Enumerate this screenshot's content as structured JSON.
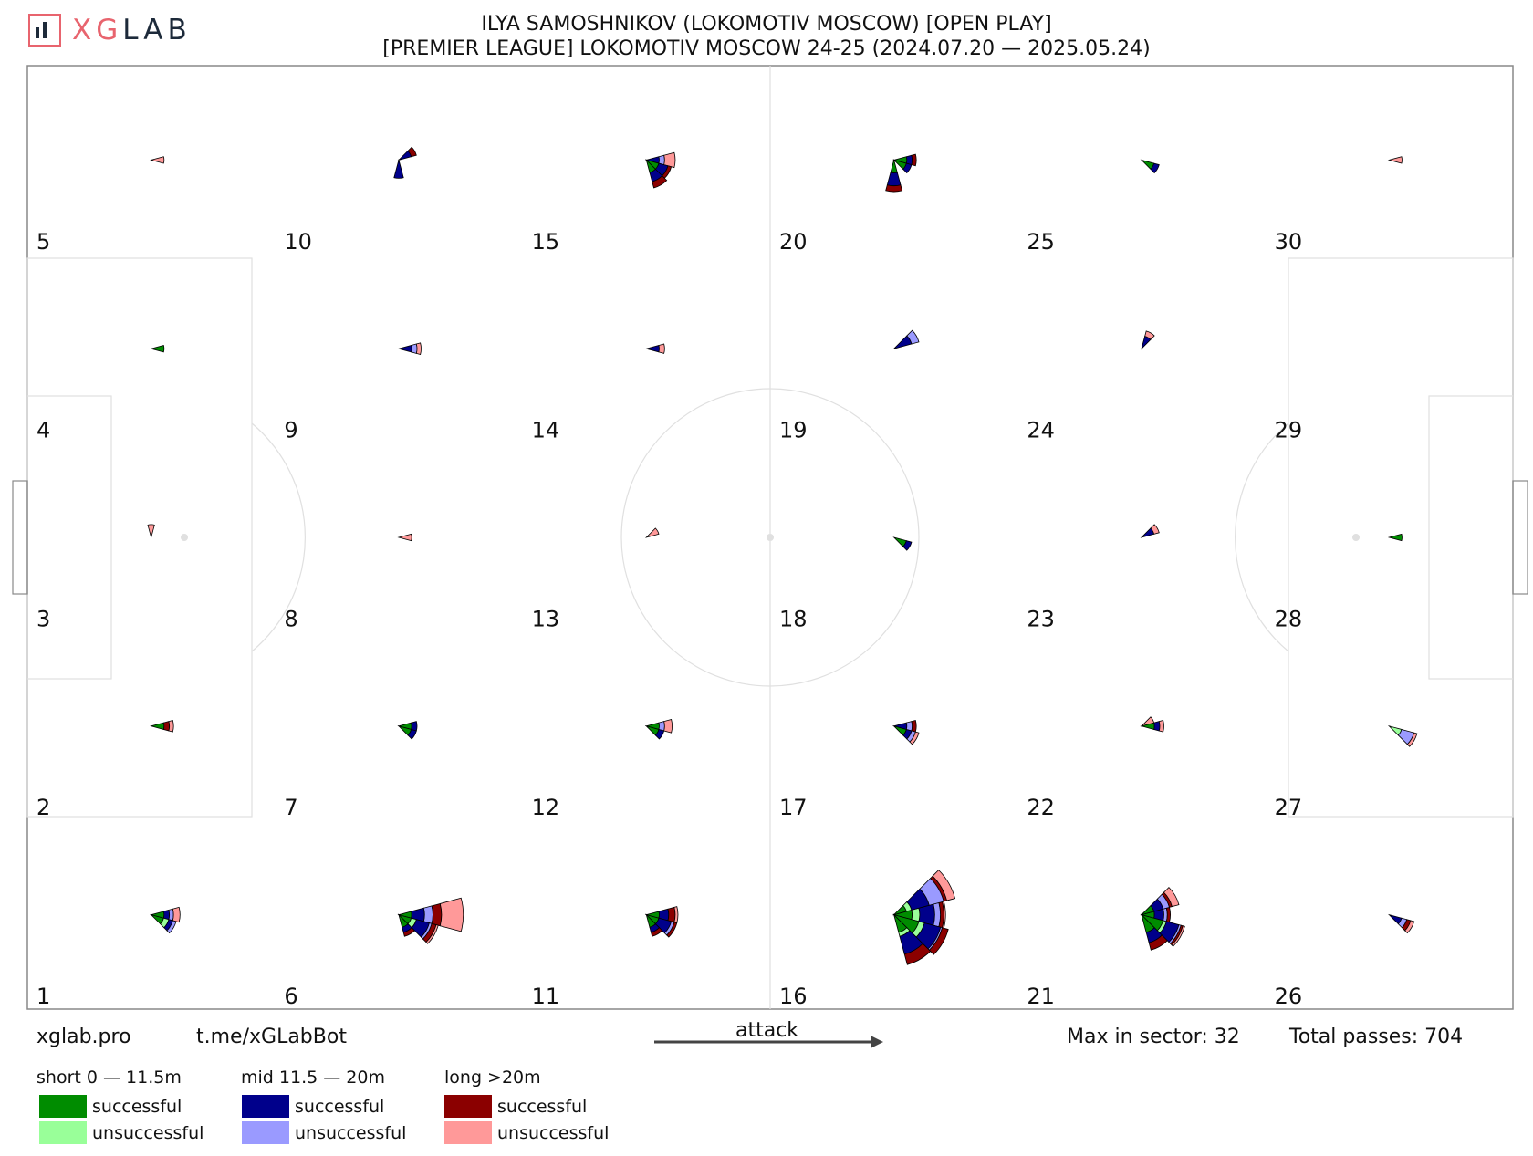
{
  "header": {
    "logo_text": "XGLAB",
    "title_line1": "ILYA SAMOSHNIKOV (LOKOMOTIV MOSCOW) [OPEN PLAY]",
    "title_line2": "[PREMIER LEAGUE] LOKOMOTIV MOSCOW 24-25 (2024.07.20 — 2025.05.24)"
  },
  "footer": {
    "site": "xglab.pro",
    "bot": "t.me/xGLabBot",
    "attack_label": "attack",
    "max_sector": "Max in sector: 32",
    "total_passes": "Total passes: 704"
  },
  "legend": {
    "groups": [
      {
        "title": "short 0 — 11.5m",
        "successful": "successful",
        "unsuccessful": "unsuccessful",
        "color_success": "#008c00",
        "color_fail": "#99ff99"
      },
      {
        "title": "mid 11.5 — 20m",
        "successful": "successful",
        "unsuccessful": "unsuccessful",
        "color_success": "#00008b",
        "color_fail": "#9a9aff"
      },
      {
        "title": "long >20m",
        "successful": "successful",
        "unsuccessful": "unsuccessful",
        "color_success": "#8b0000",
        "color_fail": "#ff9999"
      }
    ]
  },
  "chart_data": {
    "type": "radial sector map",
    "max_in_sector": 32,
    "total_passes": 704,
    "attack_direction": "left-to-right",
    "zones": [
      {
        "id": 1,
        "label": "1"
      },
      {
        "id": 2,
        "label": "2"
      },
      {
        "id": 3,
        "label": "3"
      },
      {
        "id": 4,
        "label": "4"
      },
      {
        "id": 5,
        "label": "5"
      },
      {
        "id": 6,
        "label": "6"
      },
      {
        "id": 7,
        "label": "7"
      },
      {
        "id": 8,
        "label": "8"
      },
      {
        "id": 9,
        "label": "9"
      },
      {
        "id": 10,
        "label": "10"
      },
      {
        "id": 11,
        "label": "11"
      },
      {
        "id": 12,
        "label": "12"
      },
      {
        "id": 13,
        "label": "13"
      },
      {
        "id": 14,
        "label": "14"
      },
      {
        "id": 15,
        "label": "15"
      },
      {
        "id": 16,
        "label": "16"
      },
      {
        "id": 17,
        "label": "17"
      },
      {
        "id": 18,
        "label": "18"
      },
      {
        "id": 19,
        "label": "19"
      },
      {
        "id": 20,
        "label": "20"
      },
      {
        "id": 21,
        "label": "21"
      },
      {
        "id": 22,
        "label": "22"
      },
      {
        "id": 23,
        "label": "23"
      },
      {
        "id": 24,
        "label": "24"
      },
      {
        "id": 25,
        "label": "25"
      },
      {
        "id": 26,
        "label": "26"
      },
      {
        "id": 27,
        "label": "27"
      },
      {
        "id": 28,
        "label": "28"
      },
      {
        "id": 29,
        "label": "29"
      },
      {
        "id": 30,
        "label": "30"
      }
    ],
    "sectors": [
      {
        "zone": 1,
        "dir": 0,
        "ss": 1,
        "su": 0,
        "ms": 1,
        "mu": 1,
        "ls": 0,
        "lu": 2
      },
      {
        "zone": 1,
        "dir": 11,
        "ss": 1,
        "su": 1,
        "ms": 1,
        "mu": 1,
        "ls": 0,
        "lu": 0
      },
      {
        "zone": 2,
        "dir": 0,
        "ss": 1,
        "su": 0,
        "ms": 0,
        "mu": 0,
        "ls": 1,
        "lu": 1
      },
      {
        "zone": 3,
        "dir": 3,
        "ss": 0,
        "su": 0,
        "ms": 0,
        "mu": 0,
        "ls": 0,
        "lu": 1
      },
      {
        "zone": 4,
        "dir": 0,
        "ss": 1,
        "su": 0,
        "ms": 0,
        "mu": 0,
        "ls": 0,
        "lu": 0
      },
      {
        "zone": 5,
        "dir": 0,
        "ss": 0,
        "su": 0,
        "ms": 0,
        "mu": 0,
        "ls": 0,
        "lu": 1
      },
      {
        "zone": 6,
        "dir": 0,
        "ss": 1,
        "su": 0,
        "ms": 3,
        "mu": 3,
        "ls": 4,
        "lu": 14
      },
      {
        "zone": 6,
        "dir": 11,
        "ss": 1,
        "su": 1,
        "ms": 4,
        "mu": 1,
        "ls": 2,
        "lu": 1
      },
      {
        "zone": 6,
        "dir": 10,
        "ss": 1,
        "su": 0,
        "ms": 1,
        "mu": 0,
        "ls": 1,
        "lu": 0
      },
      {
        "zone": 7,
        "dir": 0,
        "ss": 1,
        "su": 0,
        "ms": 1,
        "mu": 0,
        "ls": 0,
        "lu": 0
      },
      {
        "zone": 7,
        "dir": 11,
        "ss": 1,
        "su": 0,
        "ms": 1,
        "mu": 0,
        "ls": 0,
        "lu": 0
      },
      {
        "zone": 8,
        "dir": 0,
        "ss": 0,
        "su": 0,
        "ms": 0,
        "mu": 0,
        "ls": 0,
        "lu": 1
      },
      {
        "zone": 9,
        "dir": 0,
        "ss": 0,
        "su": 0,
        "ms": 1,
        "mu": 1,
        "ls": 0,
        "lu": 1
      },
      {
        "zone": 10,
        "dir": 1,
        "ss": 0,
        "su": 0,
        "ms": 1,
        "mu": 0,
        "ls": 1,
        "lu": 0
      },
      {
        "zone": 10,
        "dir": 9,
        "ss": 0,
        "su": 0,
        "ms": 2,
        "mu": 0,
        "ls": 0,
        "lu": 0
      },
      {
        "zone": 11,
        "dir": 0,
        "ss": 1,
        "su": 0,
        "ms": 2,
        "mu": 0,
        "ls": 2,
        "lu": 1
      },
      {
        "zone": 11,
        "dir": 11,
        "ss": 1,
        "su": 0,
        "ms": 3,
        "mu": 1,
        "ls": 1,
        "lu": 0
      },
      {
        "zone": 11,
        "dir": 10,
        "ss": 1,
        "su": 0,
        "ms": 1,
        "mu": 0,
        "ls": 1,
        "lu": 0
      },
      {
        "zone": 12,
        "dir": 0,
        "ss": 1,
        "su": 0,
        "ms": 0,
        "mu": 1,
        "ls": 0,
        "lu": 2
      },
      {
        "zone": 12,
        "dir": 11,
        "ss": 1,
        "su": 0,
        "ms": 1,
        "mu": 0,
        "ls": 0,
        "lu": 0
      },
      {
        "zone": 13,
        "dir": 1,
        "ss": 0,
        "su": 0,
        "ms": 0,
        "mu": 0,
        "ls": 0,
        "lu": 1
      },
      {
        "zone": 14,
        "dir": 0,
        "ss": 0,
        "su": 0,
        "ms": 1,
        "mu": 0,
        "ls": 0,
        "lu": 1
      },
      {
        "zone": 15,
        "dir": 0,
        "ss": 0,
        "su": 0,
        "ms": 1,
        "mu": 1,
        "ls": 0,
        "lu": 3
      },
      {
        "zone": 15,
        "dir": 11,
        "ss": 1,
        "su": 0,
        "ms": 2,
        "mu": 0,
        "ls": 1,
        "lu": 0
      },
      {
        "zone": 15,
        "dir": 10,
        "ss": 1,
        "su": 0,
        "ms": 2,
        "mu": 0,
        "ls": 2,
        "lu": 0
      },
      {
        "zone": 16,
        "dir": 0,
        "ss": 2,
        "su": 2,
        "ms": 6,
        "mu": 3,
        "ls": 2,
        "lu": 1
      },
      {
        "zone": 16,
        "dir": 1,
        "ss": 1,
        "su": 1,
        "ms": 6,
        "mu": 8,
        "ls": 2,
        "lu": 6
      },
      {
        "zone": 16,
        "dir": 11,
        "ss": 4,
        "su": 2,
        "ms": 8,
        "mu": 1,
        "ls": 4,
        "lu": 0
      },
      {
        "zone": 16,
        "dir": 10,
        "ss": 2,
        "su": 1,
        "ms": 7,
        "mu": 0,
        "ls": 6,
        "lu": 0
      },
      {
        "zone": 17,
        "dir": 0,
        "ss": 0,
        "su": 0,
        "ms": 1,
        "mu": 1,
        "ls": 1,
        "lu": 0
      },
      {
        "zone": 17,
        "dir": 11,
        "ss": 1,
        "su": 0,
        "ms": 1,
        "mu": 1,
        "ls": 0,
        "lu": 1
      },
      {
        "zone": 18,
        "dir": 11,
        "ss": 1,
        "su": 0,
        "ms": 1,
        "mu": 0,
        "ls": 0,
        "lu": 0
      },
      {
        "zone": 19,
        "dir": 1,
        "ss": 0,
        "su": 0,
        "ms": 2,
        "mu": 2,
        "ls": 0,
        "lu": 0
      },
      {
        "zone": 20,
        "dir": 0,
        "ss": 1,
        "su": 0,
        "ms": 1,
        "mu": 0,
        "ls": 1,
        "lu": 0
      },
      {
        "zone": 20,
        "dir": 11,
        "ss": 1,
        "su": 0,
        "ms": 1,
        "mu": 0,
        "ls": 0,
        "lu": 0
      },
      {
        "zone": 20,
        "dir": 9,
        "ss": 1,
        "su": 0,
        "ms": 3,
        "mu": 0,
        "ls": 2,
        "lu": 0
      },
      {
        "zone": 21,
        "dir": 0,
        "ss": 1,
        "su": 0,
        "ms": 2,
        "mu": 1,
        "ls": 1,
        "lu": 0
      },
      {
        "zone": 21,
        "dir": 1,
        "ss": 1,
        "su": 0,
        "ms": 2,
        "mu": 2,
        "ls": 1,
        "lu": 3
      },
      {
        "zone": 21,
        "dir": 11,
        "ss": 3,
        "su": 1,
        "ms": 5,
        "mu": 1,
        "ls": 1,
        "lu": 1
      },
      {
        "zone": 21,
        "dir": 10,
        "ss": 2,
        "su": 0,
        "ms": 3,
        "mu": 0,
        "ls": 3,
        "lu": 0
      },
      {
        "zone": 22,
        "dir": 0,
        "ss": 1,
        "su": 0,
        "ms": 1,
        "mu": 0,
        "ls": 0,
        "lu": 1
      },
      {
        "zone": 22,
        "dir": 1,
        "ss": 0,
        "su": 0,
        "ms": 0,
        "mu": 0,
        "ls": 0,
        "lu": 1
      },
      {
        "zone": 23,
        "dir": 1,
        "ss": 0,
        "su": 0,
        "ms": 1,
        "mu": 0,
        "ls": 0,
        "lu": 1
      },
      {
        "zone": 24,
        "dir": 2,
        "ss": 0,
        "su": 0,
        "ms": 1,
        "mu": 0,
        "ls": 0,
        "lu": 1
      },
      {
        "zone": 25,
        "dir": 11,
        "ss": 1,
        "su": 0,
        "ms": 1,
        "mu": 0,
        "ls": 0,
        "lu": 0
      },
      {
        "zone": 26,
        "dir": 11,
        "ss": 0,
        "su": 0,
        "ms": 1,
        "mu": 1,
        "ls": 1,
        "lu": 1
      },
      {
        "zone": 27,
        "dir": 11,
        "ss": 0,
        "su": 1,
        "ms": 0,
        "mu": 3,
        "ls": 0,
        "lu": 1
      },
      {
        "zone": 28,
        "dir": 0,
        "ss": 1,
        "su": 0,
        "ms": 0,
        "mu": 0,
        "ls": 0,
        "lu": 0
      },
      {
        "zone": 30,
        "dir": 0,
        "ss": 0,
        "su": 0,
        "ms": 0,
        "mu": 0,
        "ls": 0,
        "lu": 1
      }
    ]
  }
}
